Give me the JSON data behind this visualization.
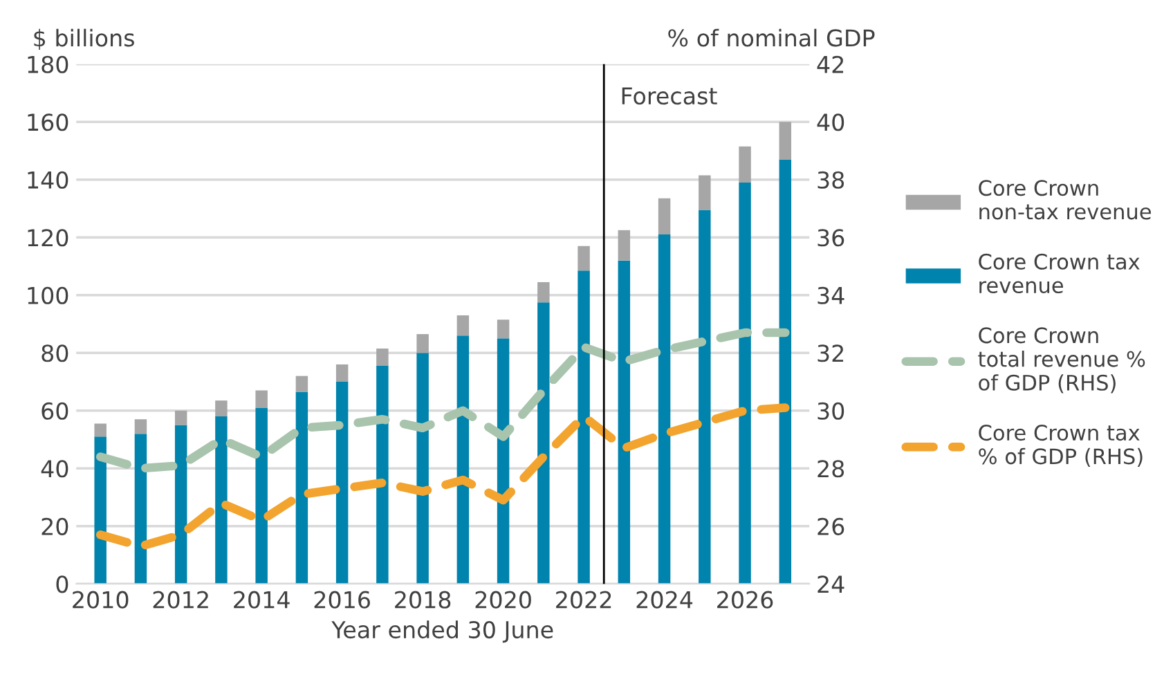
{
  "chart_data": {
    "type": "bar",
    "stacked": true,
    "x": [
      2010,
      2011,
      2012,
      2013,
      2014,
      2015,
      2016,
      2017,
      2018,
      2019,
      2020,
      2021,
      2022,
      2023,
      2024,
      2025,
      2026,
      2027
    ],
    "xlabel": "Year ended 30 June",
    "ylabel": "$ billions",
    "y2label": "% of nominal GDP",
    "xlim": [
      2009.4,
      2027.6
    ],
    "xticks": [
      2010,
      2012,
      2014,
      2016,
      2018,
      2020,
      2022,
      2024,
      2026
    ],
    "ylim": [
      0,
      180
    ],
    "yticks": [
      0,
      20,
      40,
      60,
      80,
      100,
      120,
      140,
      160,
      180
    ],
    "y2lim": [
      24,
      42
    ],
    "y2ticks": [
      24,
      26,
      28,
      30,
      32,
      34,
      36,
      38,
      40,
      42
    ],
    "grid": "y",
    "legend": "right",
    "ref_lines": [
      {
        "axis": "x",
        "value": 2022.5,
        "label": "Forecast",
        "color": "#000000",
        "line_style": "solid"
      }
    ],
    "series": [
      {
        "name": "Core Crown tax\nrevenue",
        "color": "#0083ad",
        "values": [
          51,
          52,
          55,
          58,
          61,
          66.5,
          70,
          75.5,
          80,
          86,
          85,
          97.5,
          108.5,
          112,
          121,
          129.5,
          139,
          147
        ]
      },
      {
        "name": "Core Crown\nnon-tax revenue",
        "color": "#a6a6a6",
        "values": [
          4.5,
          5,
          5,
          5.5,
          6,
          5.5,
          6,
          6,
          6.5,
          7,
          6.5,
          7,
          8.5,
          10.5,
          12.5,
          12,
          12.5,
          13
        ]
      },
      {
        "name": "Core Crown\ntotal revenue %\nof GDP (RHS)",
        "type": "line",
        "axis": "y2",
        "line_style": "dashed",
        "marker": "none",
        "color": "#a9c4ad",
        "values": [
          28.4,
          28.0,
          28.1,
          29.0,
          28.4,
          29.4,
          29.5,
          29.7,
          29.4,
          30.0,
          29.1,
          30.7,
          32.2,
          31.7,
          32.1,
          32.4,
          32.7,
          32.7
        ]
      },
      {
        "name": "Core Crown tax\n% of GDP (RHS)",
        "type": "line",
        "axis": "y2",
        "line_style": "dashed",
        "marker": "none",
        "color": "#f2a42f",
        "values": [
          25.7,
          25.3,
          25.7,
          26.8,
          26.2,
          27.1,
          27.3,
          27.5,
          27.2,
          27.6,
          26.9,
          28.4,
          29.8,
          28.7,
          29.2,
          29.6,
          30.0,
          30.1
        ]
      }
    ]
  }
}
